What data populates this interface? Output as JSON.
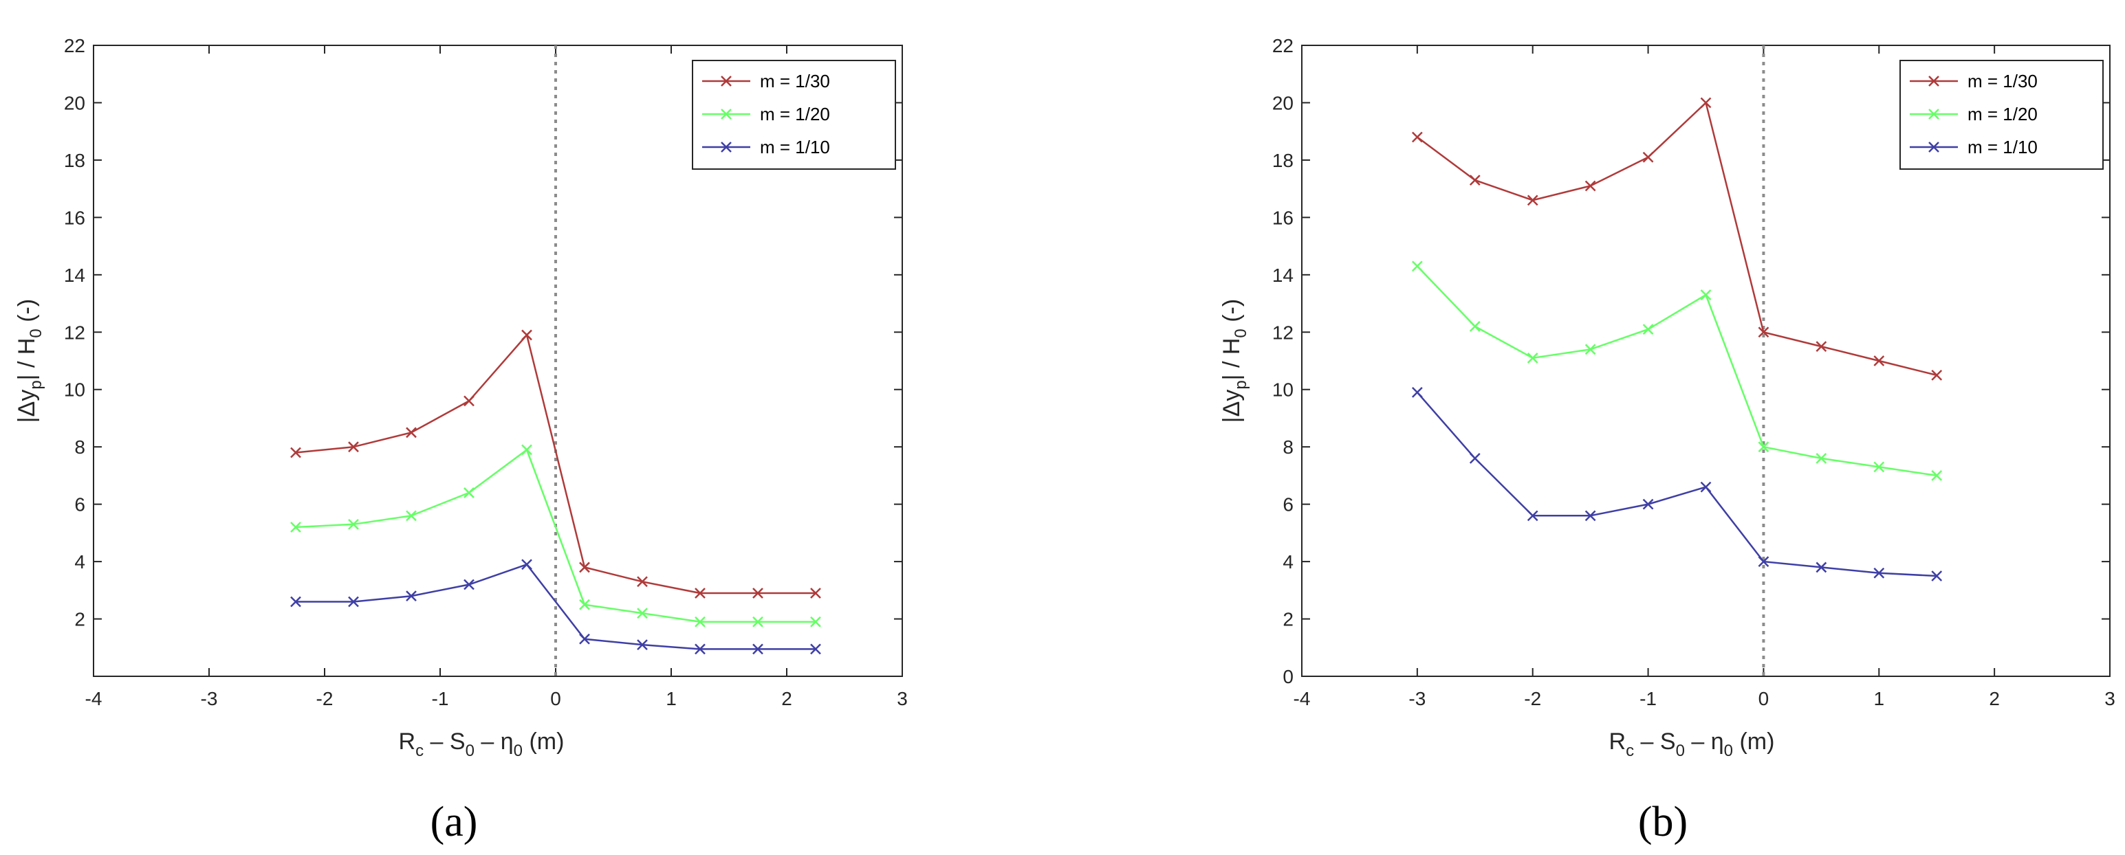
{
  "chart_data": [
    {
      "type": "line",
      "panel_label": "(a)",
      "xlabel": {
        "main": "R",
        "sub1": "c",
        "mid1": " – S",
        "sub2": "0",
        "mid2": " – η",
        "sub3": "0",
        "tail": "  (m)"
      },
      "ylabel": {
        "pre": "|Δy",
        "sub1": "p",
        "mid": "| / H",
        "sub2": "0",
        "tail": " (-)"
      },
      "xlim": [
        -4,
        3
      ],
      "ylim": [
        0,
        22
      ],
      "xticks": [
        "-4",
        "-3",
        "-2",
        "-1",
        "0",
        "1",
        "2",
        "3"
      ],
      "yticks": [
        "2",
        "4",
        "6",
        "8",
        "10",
        "12",
        "14",
        "16",
        "18",
        "20",
        "22"
      ],
      "grid": false,
      "legend_position": "top-right",
      "reference_line_x": 0,
      "x": [
        -2.25,
        -1.75,
        -1.25,
        -0.75,
        -0.25,
        0.25,
        0.75,
        1.25,
        1.75,
        2.25
      ],
      "series": [
        {
          "name": "m = 1/30",
          "color": "#b03a3a",
          "values": [
            7.8,
            8.0,
            8.5,
            9.6,
            11.9,
            3.8,
            3.3,
            2.9,
            2.9,
            2.9
          ]
        },
        {
          "name": "m = 1/20",
          "color": "#66ff66",
          "values": [
            5.2,
            5.3,
            5.6,
            6.4,
            7.9,
            2.5,
            2.2,
            1.9,
            1.9,
            1.9
          ]
        },
        {
          "name": "m = 1/10",
          "color": "#3f3fa6",
          "values": [
            2.6,
            2.6,
            2.8,
            3.2,
            3.9,
            1.3,
            1.1,
            0.95,
            0.95,
            0.95
          ]
        }
      ]
    },
    {
      "type": "line",
      "panel_label": "(b)",
      "xlabel": {
        "main": "R",
        "sub1": "c",
        "mid1": " – S",
        "sub2": "0",
        "mid2": " – η",
        "sub3": "0",
        "tail": "  (m)"
      },
      "ylabel": {
        "pre": "|Δy",
        "sub1": "p",
        "mid": "| / H",
        "sub2": "0",
        "tail": " (-)"
      },
      "xlim": [
        -4,
        3
      ],
      "ylim": [
        0,
        22
      ],
      "xticks": [
        "-4",
        "-3",
        "-2",
        "-1",
        "0",
        "1",
        "2",
        "3"
      ],
      "yticks": [
        "0",
        "2",
        "4",
        "6",
        "8",
        "10",
        "12",
        "14",
        "16",
        "18",
        "20",
        "22"
      ],
      "grid": false,
      "legend_position": "top-right",
      "reference_line_x": 0,
      "x": [
        -3,
        -2.5,
        -2,
        -1.5,
        -1,
        -0.5,
        0,
        0.5,
        1,
        1.5
      ],
      "series": [
        {
          "name": "m = 1/30",
          "color": "#b03a3a",
          "values": [
            18.8,
            17.3,
            16.6,
            17.1,
            18.1,
            20.0,
            12.0,
            11.5,
            11.0,
            10.5
          ]
        },
        {
          "name": "m = 1/20",
          "color": "#66ff66",
          "values": [
            14.3,
            12.2,
            11.1,
            11.4,
            12.1,
            13.3,
            8.0,
            7.6,
            7.3,
            7.0
          ]
        },
        {
          "name": "m = 1/10",
          "color": "#3f3fa6",
          "values": [
            9.9,
            7.6,
            5.6,
            5.6,
            6.0,
            6.6,
            4.0,
            3.8,
            3.6,
            3.5
          ]
        }
      ]
    }
  ]
}
